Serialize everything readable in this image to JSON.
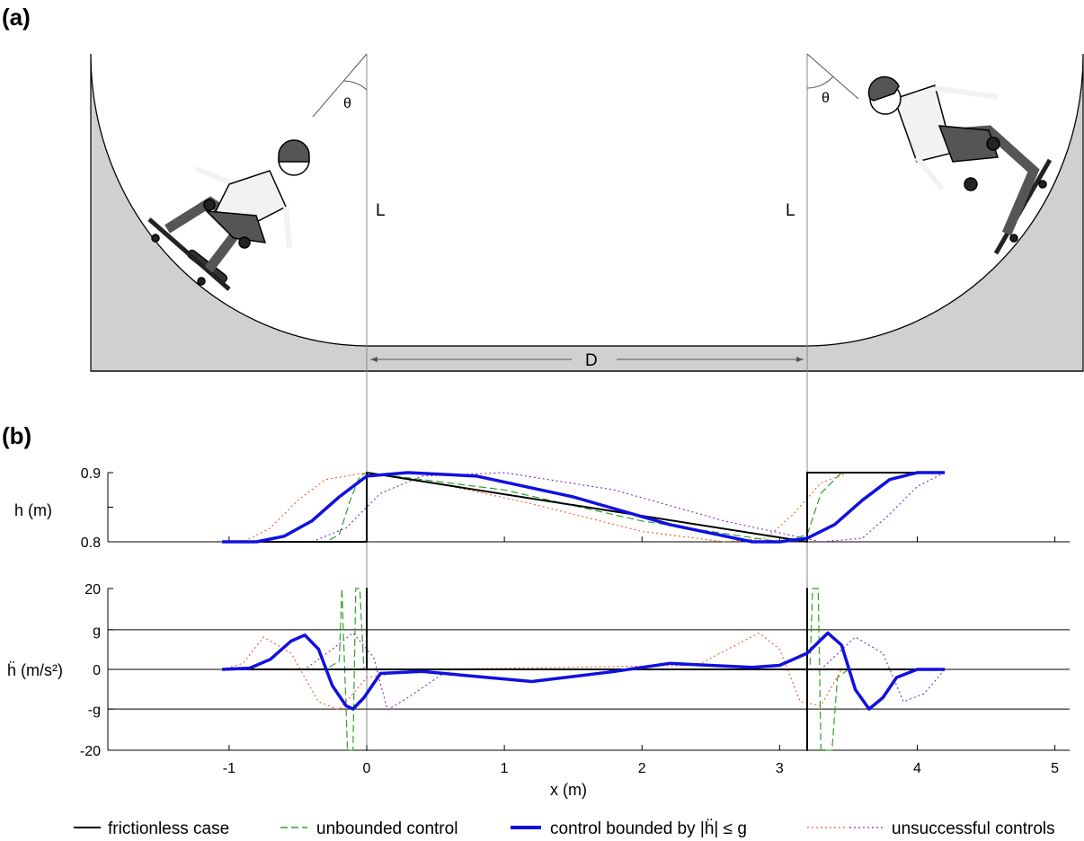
{
  "panels": {
    "a": "(a)",
    "b": "(b)"
  },
  "ramp": {
    "L_left": "L",
    "L_right": "L",
    "D": "D",
    "angle_symbol": "θ"
  },
  "legend": {
    "frictionless": "frictionless case",
    "unbounded": "unbounded control",
    "bounded": "control bounded by |ḧ| ≤ g",
    "unsuccessful": "unsuccessful controls"
  },
  "colors": {
    "frictionless": "#000000",
    "unbounded": "#33a02c",
    "bounded": "#1010e0",
    "unsuccessful_1": "#f05a28",
    "unsuccessful_2": "#7b2cbf",
    "ramp_fill": "#d0d0d0"
  },
  "chart_data": [
    {
      "type": "line",
      "ylabel": "h (m)",
      "xlim": [
        -1.05,
        5.1
      ],
      "ylim": [
        0.8,
        0.9
      ],
      "yticks": [
        "0.8",
        "",
        "0.9"
      ],
      "series": [
        {
          "name": "frictionless case",
          "points": [
            [
              -1.05,
              0.8
            ],
            [
              0.0,
              0.8
            ],
            [
              0.0,
              0.9
            ],
            [
              3.2,
              0.8
            ],
            [
              3.2,
              0.9
            ],
            [
              4.2,
              0.9
            ]
          ]
        },
        {
          "name": "unbounded control",
          "points": [
            [
              -1.05,
              0.8
            ],
            [
              -0.3,
              0.8
            ],
            [
              -0.2,
              0.81
            ],
            [
              -0.12,
              0.86
            ],
            [
              -0.05,
              0.895
            ],
            [
              0.0,
              0.9
            ],
            [
              1.0,
              0.875
            ],
            [
              2.0,
              0.83
            ],
            [
              3.0,
              0.8
            ],
            [
              3.2,
              0.81
            ],
            [
              3.3,
              0.87
            ],
            [
              3.45,
              0.9
            ],
            [
              4.2,
              0.9
            ]
          ]
        },
        {
          "name": "control bounded by |ḧ| ≤ g",
          "points": [
            [
              -1.05,
              0.8
            ],
            [
              -0.8,
              0.8
            ],
            [
              -0.6,
              0.808
            ],
            [
              -0.4,
              0.83
            ],
            [
              -0.2,
              0.865
            ],
            [
              0.0,
              0.895
            ],
            [
              0.3,
              0.9
            ],
            [
              0.8,
              0.895
            ],
            [
              1.5,
              0.865
            ],
            [
              2.2,
              0.825
            ],
            [
              2.8,
              0.8
            ],
            [
              3.0,
              0.8
            ],
            [
              3.2,
              0.805
            ],
            [
              3.4,
              0.825
            ],
            [
              3.6,
              0.86
            ],
            [
              3.8,
              0.89
            ],
            [
              4.0,
              0.9
            ],
            [
              4.2,
              0.9
            ]
          ]
        },
        {
          "name": "",
          "points": [
            [
              -1.05,
              0.8
            ],
            [
              -0.9,
              0.8
            ],
            [
              -0.7,
              0.82
            ],
            [
              -0.5,
              0.86
            ],
            [
              -0.3,
              0.89
            ],
            [
              0.0,
              0.9
            ],
            [
              0.5,
              0.885
            ],
            [
              1.2,
              0.855
            ],
            [
              2.0,
              0.815
            ],
            [
              2.6,
              0.8
            ],
            [
              2.9,
              0.805
            ],
            [
              3.1,
              0.84
            ],
            [
              3.3,
              0.885
            ],
            [
              3.5,
              0.9
            ],
            [
              4.2,
              0.9
            ]
          ]
        },
        {
          "name": "",
          "points": [
            [
              -1.05,
              0.8
            ],
            [
              -0.4,
              0.8
            ],
            [
              -0.15,
              0.82
            ],
            [
              0.1,
              0.87
            ],
            [
              0.4,
              0.895
            ],
            [
              1.0,
              0.9
            ],
            [
              1.8,
              0.875
            ],
            [
              2.6,
              0.83
            ],
            [
              3.3,
              0.8
            ],
            [
              3.6,
              0.805
            ],
            [
              3.8,
              0.84
            ],
            [
              4.0,
              0.88
            ],
            [
              4.2,
              0.9
            ]
          ]
        }
      ]
    },
    {
      "type": "line",
      "ylabel": "ḧ (m/s²)",
      "xlabel": "x (m)",
      "xlim": [
        -1.05,
        5.1
      ],
      "ylim": [
        -20,
        20
      ],
      "xticks": [
        "-1",
        "0",
        "1",
        "2",
        "3",
        "4",
        "5"
      ],
      "yticks": [
        "-20",
        "-g",
        "0",
        "g",
        "20"
      ],
      "yticks_values": [
        -20,
        -9.81,
        0,
        9.81,
        20
      ],
      "series": [
        {
          "name": "frictionless case",
          "points": [
            [
              -1.05,
              0
            ],
            [
              0.0,
              0
            ],
            [
              0.0,
              20
            ],
            [
              0.0,
              0
            ],
            [
              3.2,
              0
            ],
            [
              3.2,
              -20
            ],
            [
              3.2,
              20
            ],
            [
              3.2,
              0
            ],
            [
              4.2,
              0
            ]
          ]
        },
        {
          "name": "unbounded control",
          "points": [
            [
              -1.05,
              0
            ],
            [
              -0.3,
              0
            ],
            [
              -0.2,
              2
            ],
            [
              -0.18,
              20
            ],
            [
              -0.14,
              -20
            ],
            [
              -0.1,
              -20
            ],
            [
              -0.08,
              20
            ],
            [
              -0.05,
              20
            ],
            [
              -0.02,
              0
            ],
            [
              3.22,
              0
            ],
            [
              3.24,
              20
            ],
            [
              3.28,
              20
            ],
            [
              3.3,
              -20
            ],
            [
              3.38,
              -20
            ],
            [
              3.42,
              -2
            ],
            [
              3.5,
              0
            ],
            [
              4.2,
              0
            ]
          ]
        },
        {
          "name": "control bounded by |ḧ| ≤ g",
          "points": [
            [
              -1.05,
              0
            ],
            [
              -0.85,
              0.3
            ],
            [
              -0.7,
              2.5
            ],
            [
              -0.55,
              7
            ],
            [
              -0.45,
              8.5
            ],
            [
              -0.35,
              5
            ],
            [
              -0.25,
              -4
            ],
            [
              -0.15,
              -9
            ],
            [
              -0.1,
              -9.8
            ],
            [
              -0.02,
              -7
            ],
            [
              0.1,
              -1
            ],
            [
              0.4,
              -0.5
            ],
            [
              1.2,
              -3
            ],
            [
              1.8,
              -0.5
            ],
            [
              2.2,
              1.5
            ],
            [
              2.8,
              0.5
            ],
            [
              3.0,
              1.0
            ],
            [
              3.2,
              4
            ],
            [
              3.35,
              9
            ],
            [
              3.45,
              6
            ],
            [
              3.55,
              -5
            ],
            [
              3.65,
              -9.8
            ],
            [
              3.75,
              -7
            ],
            [
              3.85,
              -2
            ],
            [
              4.0,
              0
            ],
            [
              4.2,
              0
            ]
          ]
        },
        {
          "name": "",
          "points": [
            [
              -1.05,
              0
            ],
            [
              -0.9,
              1.5
            ],
            [
              -0.75,
              8
            ],
            [
              -0.55,
              4
            ],
            [
              -0.35,
              -8
            ],
            [
              -0.2,
              -10
            ],
            [
              0.0,
              -2
            ],
            [
              0.4,
              0
            ],
            [
              2.4,
              1
            ],
            [
              2.85,
              9
            ],
            [
              3.0,
              5
            ],
            [
              3.15,
              -8
            ],
            [
              3.3,
              -9
            ],
            [
              3.45,
              0
            ],
            [
              4.2,
              0
            ]
          ]
        },
        {
          "name": "",
          "points": [
            [
              -1.05,
              0
            ],
            [
              -0.45,
              0
            ],
            [
              -0.25,
              5
            ],
            [
              -0.1,
              9
            ],
            [
              0.05,
              3
            ],
            [
              0.15,
              -10
            ],
            [
              0.3,
              -7
            ],
            [
              0.6,
              0
            ],
            [
              3.3,
              0
            ],
            [
              3.55,
              8
            ],
            [
              3.75,
              4
            ],
            [
              3.9,
              -8
            ],
            [
              4.05,
              -6
            ],
            [
              4.2,
              0
            ]
          ]
        }
      ]
    }
  ]
}
